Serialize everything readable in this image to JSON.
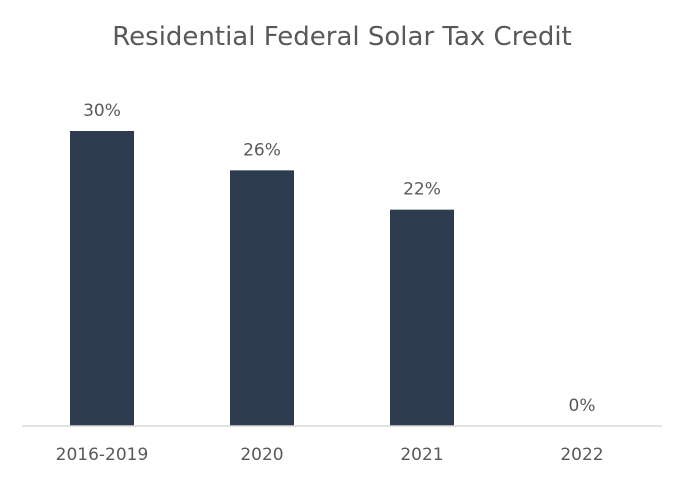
{
  "chart_data": {
    "type": "bar",
    "title": "Residential Federal Solar Tax Credit",
    "categories": [
      "2016-2019",
      "2020",
      "2021",
      "2022"
    ],
    "values": [
      30,
      26,
      22,
      0
    ],
    "value_labels": [
      "30%",
      "26%",
      "22%",
      "0%"
    ],
    "ylim": [
      0,
      30
    ],
    "grid": false,
    "legend": "none",
    "colors": {
      "bar": "#2e3c4f",
      "text": "#595959",
      "axis": "#d9d9d9"
    }
  }
}
